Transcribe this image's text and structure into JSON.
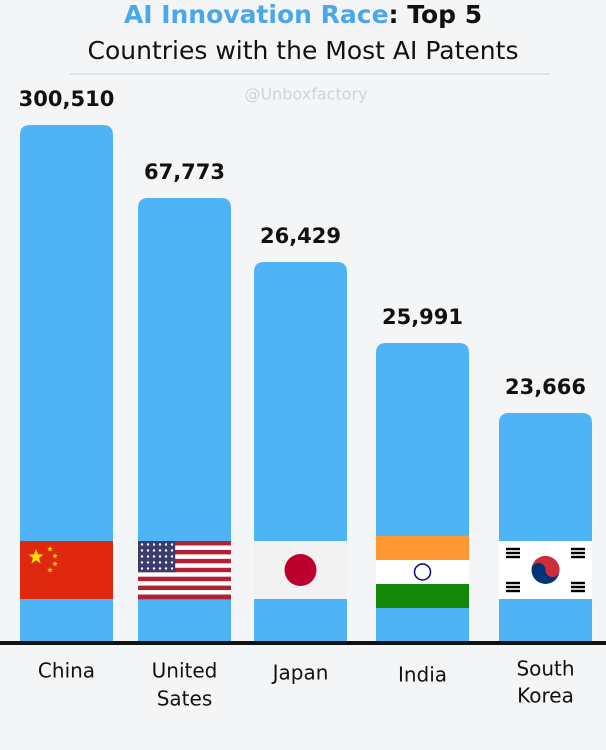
{
  "header": {
    "title_highlight": "AI Innovation Race",
    "title_rest": ": Top 5",
    "subtitle": "Countries with the Most AI Patents",
    "watermark": "@Unboxfactory"
  },
  "countries": [
    {
      "name": [
        "China"
      ],
      "patents": "300,510"
    },
    {
      "name": [
        "United",
        "Sates"
      ],
      "patents": "67,773"
    },
    {
      "name": [
        "Japan"
      ],
      "patents": "26,429"
    },
    {
      "name": [
        "India"
      ],
      "patents": "25,991"
    },
    {
      "name": [
        "South",
        "Korea"
      ],
      "patents": "23,666"
    }
  ]
}
